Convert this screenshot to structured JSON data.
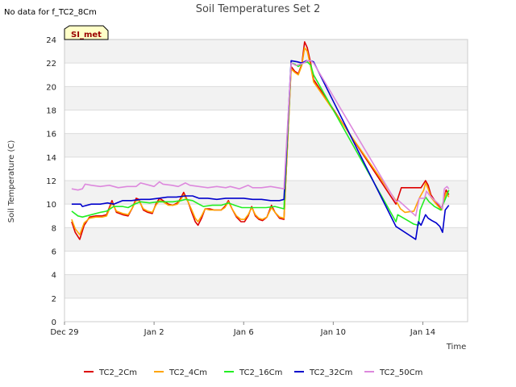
{
  "corner_note": "No data for f_TC2_8Cm",
  "badge": "SI_met",
  "colors": {
    "band": "#f2f2f2",
    "grid": "#dcdcdc",
    "badge_fill": "#ffffc8",
    "badge_text": "#990000",
    "legend_colors": [
      "#dd0000",
      "#ffa500",
      "#22ee22",
      "#0000cc",
      "#dd88dd"
    ]
  },
  "chart_data": {
    "type": "line",
    "title": "Soil Temperatures Set 2",
    "xlabel": "Time",
    "ylabel": "Soil Temperature (C)",
    "x_unit": "days since Dec 29",
    "xlim": [
      0,
      45
    ],
    "ylim": [
      0,
      24
    ],
    "x_ticks": [
      {
        "x": 0,
        "label": "Dec 29"
      },
      {
        "x": 10,
        "label": "Jan 2"
      },
      {
        "x": 20,
        "label": "Jan 6"
      },
      {
        "x": 30,
        "label": "Jan 10"
      },
      {
        "x": 40,
        "label": "Jan 14"
      }
    ],
    "y_ticks": [
      0,
      2,
      4,
      6,
      8,
      10,
      12,
      14,
      16,
      18,
      20,
      22,
      24
    ],
    "grid": true,
    "legend_position": "bottom",
    "series": [
      {
        "name": "TC2_2Cm",
        "color": "#dd0000",
        "points": [
          [
            0.8,
            8.5
          ],
          [
            1.2,
            7.6
          ],
          [
            1.7,
            7.0
          ],
          [
            2.2,
            8.2
          ],
          [
            2.8,
            8.9
          ],
          [
            3.5,
            9.0
          ],
          [
            4.2,
            9.0
          ],
          [
            4.7,
            9.1
          ],
          [
            5.3,
            10.3
          ],
          [
            5.8,
            9.3
          ],
          [
            6.5,
            9.1
          ],
          [
            7.1,
            9.0
          ],
          [
            7.6,
            9.7
          ],
          [
            8.0,
            10.5
          ],
          [
            8.3,
            10.4
          ],
          [
            8.8,
            9.5
          ],
          [
            9.3,
            9.3
          ],
          [
            9.8,
            9.2
          ],
          [
            10.2,
            10.0
          ],
          [
            10.6,
            10.5
          ],
          [
            11.0,
            10.3
          ],
          [
            11.6,
            10.0
          ],
          [
            12.1,
            9.9
          ],
          [
            12.6,
            10.1
          ],
          [
            12.9,
            10.4
          ],
          [
            13.3,
            11.0
          ],
          [
            13.8,
            10.2
          ],
          [
            14.2,
            9.3
          ],
          [
            14.6,
            8.5
          ],
          [
            14.9,
            8.2
          ],
          [
            15.3,
            8.8
          ],
          [
            15.7,
            9.6
          ],
          [
            16.2,
            9.6
          ],
          [
            16.7,
            9.5
          ],
          [
            17.1,
            9.5
          ],
          [
            17.5,
            9.5
          ],
          [
            17.9,
            9.8
          ],
          [
            18.3,
            10.3
          ],
          [
            18.7,
            9.6
          ],
          [
            19.2,
            8.9
          ],
          [
            19.7,
            8.5
          ],
          [
            20.1,
            8.5
          ],
          [
            20.5,
            9.0
          ],
          [
            20.9,
            9.8
          ],
          [
            21.3,
            9.0
          ],
          [
            21.7,
            8.7
          ],
          [
            22.1,
            8.6
          ],
          [
            22.6,
            8.9
          ],
          [
            23.1,
            9.9
          ],
          [
            23.5,
            9.3
          ],
          [
            24.0,
            8.8
          ],
          [
            24.5,
            8.7
          ],
          [
            25.3,
            21.7
          ],
          [
            25.7,
            21.3
          ],
          [
            26.1,
            21.1
          ],
          [
            26.5,
            21.9
          ],
          [
            26.8,
            23.8
          ],
          [
            27.1,
            23.3
          ],
          [
            27.5,
            21.9
          ],
          [
            27.8,
            20.6
          ],
          [
            37.0,
            10.0
          ],
          [
            37.6,
            11.4
          ],
          [
            39.8,
            11.4
          ],
          [
            40.3,
            12.0
          ],
          [
            40.6,
            11.6
          ],
          [
            40.9,
            10.8
          ],
          [
            41.5,
            10.1
          ],
          [
            42.1,
            9.6
          ],
          [
            42.6,
            11.2
          ],
          [
            42.9,
            10.8
          ]
        ]
      },
      {
        "name": "TC2_4Cm",
        "color": "#ffa500",
        "points": [
          [
            0.8,
            8.7
          ],
          [
            1.2,
            7.9
          ],
          [
            1.7,
            7.4
          ],
          [
            2.2,
            8.4
          ],
          [
            2.8,
            8.8
          ],
          [
            3.5,
            8.9
          ],
          [
            4.2,
            8.9
          ],
          [
            4.7,
            9.0
          ],
          [
            5.3,
            10.1
          ],
          [
            5.8,
            9.4
          ],
          [
            6.5,
            9.2
          ],
          [
            7.1,
            9.1
          ],
          [
            7.6,
            9.7
          ],
          [
            8.0,
            10.3
          ],
          [
            8.3,
            10.3
          ],
          [
            8.8,
            9.6
          ],
          [
            9.3,
            9.4
          ],
          [
            9.8,
            9.3
          ],
          [
            10.2,
            9.9
          ],
          [
            10.6,
            10.3
          ],
          [
            11.0,
            10.2
          ],
          [
            11.6,
            9.9
          ],
          [
            12.1,
            9.9
          ],
          [
            12.6,
            10.0
          ],
          [
            12.9,
            10.3
          ],
          [
            13.3,
            10.8
          ],
          [
            13.8,
            10.2
          ],
          [
            14.2,
            9.5
          ],
          [
            14.6,
            8.8
          ],
          [
            14.9,
            8.5
          ],
          [
            15.3,
            9.0
          ],
          [
            15.7,
            9.6
          ],
          [
            16.2,
            9.5
          ],
          [
            16.7,
            9.5
          ],
          [
            17.1,
            9.5
          ],
          [
            17.5,
            9.5
          ],
          [
            17.9,
            9.7
          ],
          [
            18.3,
            10.2
          ],
          [
            18.7,
            9.6
          ],
          [
            19.2,
            9.0
          ],
          [
            19.7,
            8.7
          ],
          [
            20.1,
            8.7
          ],
          [
            20.5,
            9.1
          ],
          [
            20.9,
            9.7
          ],
          [
            21.3,
            9.1
          ],
          [
            21.7,
            8.8
          ],
          [
            22.1,
            8.7
          ],
          [
            22.6,
            8.9
          ],
          [
            23.1,
            9.7
          ],
          [
            23.5,
            9.3
          ],
          [
            24.0,
            8.9
          ],
          [
            24.5,
            8.8
          ],
          [
            25.3,
            21.5
          ],
          [
            25.7,
            21.2
          ],
          [
            26.1,
            21.0
          ],
          [
            26.5,
            21.8
          ],
          [
            26.8,
            23.3
          ],
          [
            27.1,
            23.0
          ],
          [
            27.5,
            21.6
          ],
          [
            27.8,
            20.4
          ],
          [
            37.0,
            10.3
          ],
          [
            37.5,
            9.6
          ],
          [
            38.0,
            9.3
          ],
          [
            39.0,
            9.4
          ],
          [
            39.6,
            10.5
          ],
          [
            40.1,
            11.2
          ],
          [
            40.3,
            11.8
          ],
          [
            40.6,
            11.3
          ],
          [
            40.9,
            10.6
          ],
          [
            41.5,
            10.0
          ],
          [
            42.1,
            9.5
          ],
          [
            42.6,
            11.0
          ],
          [
            42.9,
            10.6
          ]
        ]
      },
      {
        "name": "TC2_16Cm",
        "color": "#22ee22",
        "points": [
          [
            0.8,
            9.4
          ],
          [
            1.5,
            9.0
          ],
          [
            2.0,
            8.9
          ],
          [
            3.0,
            9.1
          ],
          [
            4.0,
            9.3
          ],
          [
            4.7,
            9.4
          ],
          [
            5.5,
            9.8
          ],
          [
            6.5,
            9.8
          ],
          [
            7.1,
            9.7
          ],
          [
            7.8,
            10.0
          ],
          [
            8.5,
            10.2
          ],
          [
            9.5,
            10.1
          ],
          [
            10.4,
            10.2
          ],
          [
            11.3,
            10.2
          ],
          [
            12.1,
            10.2
          ],
          [
            13.0,
            10.3
          ],
          [
            13.5,
            10.4
          ],
          [
            14.3,
            10.3
          ],
          [
            15.0,
            10.0
          ],
          [
            15.5,
            9.8
          ],
          [
            16.5,
            9.9
          ],
          [
            17.5,
            9.9
          ],
          [
            18.3,
            10.1
          ],
          [
            19.0,
            9.9
          ],
          [
            19.8,
            9.7
          ],
          [
            20.5,
            9.7
          ],
          [
            21.5,
            9.7
          ],
          [
            22.5,
            9.7
          ],
          [
            23.5,
            9.8
          ],
          [
            24.5,
            9.6
          ],
          [
            25.3,
            22.0
          ],
          [
            25.7,
            21.9
          ],
          [
            26.1,
            21.7
          ],
          [
            26.6,
            22.0
          ],
          [
            27.1,
            22.1
          ],
          [
            27.5,
            21.8
          ],
          [
            27.8,
            21.0
          ],
          [
            37.0,
            8.5
          ],
          [
            37.2,
            9.1
          ],
          [
            39.0,
            8.3
          ],
          [
            39.5,
            8.2
          ],
          [
            39.7,
            9.5
          ],
          [
            40.3,
            10.6
          ],
          [
            40.7,
            10.2
          ],
          [
            41.3,
            9.8
          ],
          [
            42.0,
            9.5
          ],
          [
            42.6,
            10.6
          ],
          [
            42.9,
            11.2
          ]
        ]
      },
      {
        "name": "TC2_32Cm",
        "color": "#0000cc",
        "points": [
          [
            0.8,
            10.0
          ],
          [
            1.8,
            10.0
          ],
          [
            2.0,
            9.8
          ],
          [
            3.0,
            10.0
          ],
          [
            4.0,
            10.0
          ],
          [
            4.8,
            10.1
          ],
          [
            5.5,
            10.0
          ],
          [
            6.5,
            10.3
          ],
          [
            7.5,
            10.3
          ],
          [
            8.5,
            10.4
          ],
          [
            9.5,
            10.4
          ],
          [
            10.5,
            10.5
          ],
          [
            11.5,
            10.6
          ],
          [
            12.5,
            10.6
          ],
          [
            13.5,
            10.7
          ],
          [
            14.3,
            10.7
          ],
          [
            15.0,
            10.5
          ],
          [
            16.0,
            10.5
          ],
          [
            17.0,
            10.4
          ],
          [
            18.0,
            10.5
          ],
          [
            19.0,
            10.5
          ],
          [
            20.0,
            10.5
          ],
          [
            21.0,
            10.4
          ],
          [
            22.0,
            10.4
          ],
          [
            23.0,
            10.3
          ],
          [
            24.0,
            10.3
          ],
          [
            24.5,
            10.4
          ],
          [
            25.3,
            22.2
          ],
          [
            26.0,
            22.1
          ],
          [
            26.5,
            22.0
          ],
          [
            27.0,
            22.2
          ],
          [
            27.5,
            22.2
          ],
          [
            27.8,
            22.1
          ],
          [
            37.0,
            8.1
          ],
          [
            37.2,
            8.0
          ],
          [
            39.2,
            7.0
          ],
          [
            39.5,
            8.5
          ],
          [
            39.8,
            8.2
          ],
          [
            40.3,
            9.1
          ],
          [
            40.6,
            8.8
          ],
          [
            41.0,
            8.6
          ],
          [
            41.5,
            8.4
          ],
          [
            41.9,
            8.1
          ],
          [
            42.2,
            7.6
          ],
          [
            42.5,
            9.5
          ],
          [
            42.9,
            9.9
          ]
        ]
      },
      {
        "name": "TC2_50Cm",
        "color": "#dd88dd",
        "points": [
          [
            0.8,
            11.3
          ],
          [
            1.5,
            11.2
          ],
          [
            2.0,
            11.3
          ],
          [
            2.3,
            11.7
          ],
          [
            3.0,
            11.6
          ],
          [
            4.0,
            11.5
          ],
          [
            5.0,
            11.6
          ],
          [
            6.0,
            11.4
          ],
          [
            7.0,
            11.5
          ],
          [
            8.0,
            11.5
          ],
          [
            8.5,
            11.8
          ],
          [
            9.5,
            11.6
          ],
          [
            10.0,
            11.5
          ],
          [
            10.6,
            11.9
          ],
          [
            11.0,
            11.7
          ],
          [
            12.0,
            11.6
          ],
          [
            12.7,
            11.5
          ],
          [
            13.5,
            11.8
          ],
          [
            14.0,
            11.6
          ],
          [
            15.0,
            11.5
          ],
          [
            16.0,
            11.4
          ],
          [
            17.0,
            11.5
          ],
          [
            18.0,
            11.4
          ],
          [
            18.5,
            11.5
          ],
          [
            19.5,
            11.3
          ],
          [
            20.5,
            11.6
          ],
          [
            21.0,
            11.4
          ],
          [
            22.0,
            11.4
          ],
          [
            23.0,
            11.5
          ],
          [
            23.8,
            11.4
          ],
          [
            24.5,
            11.3
          ],
          [
            25.3,
            22.0
          ],
          [
            25.8,
            21.8
          ],
          [
            26.3,
            21.9
          ],
          [
            26.7,
            22.0
          ],
          [
            27.1,
            22.2
          ],
          [
            27.5,
            22.2
          ],
          [
            27.8,
            22.0
          ],
          [
            37.0,
            10.2
          ],
          [
            37.3,
            10.3
          ],
          [
            39.2,
            9.0
          ],
          [
            39.6,
            10.5
          ],
          [
            40.2,
            10.5
          ],
          [
            40.4,
            11.1
          ],
          [
            40.7,
            10.8
          ],
          [
            41.2,
            10.4
          ],
          [
            41.8,
            10.0
          ],
          [
            42.2,
            9.6
          ],
          [
            42.4,
            11.3
          ],
          [
            42.7,
            11.5
          ],
          [
            42.9,
            11.3
          ]
        ]
      }
    ]
  }
}
